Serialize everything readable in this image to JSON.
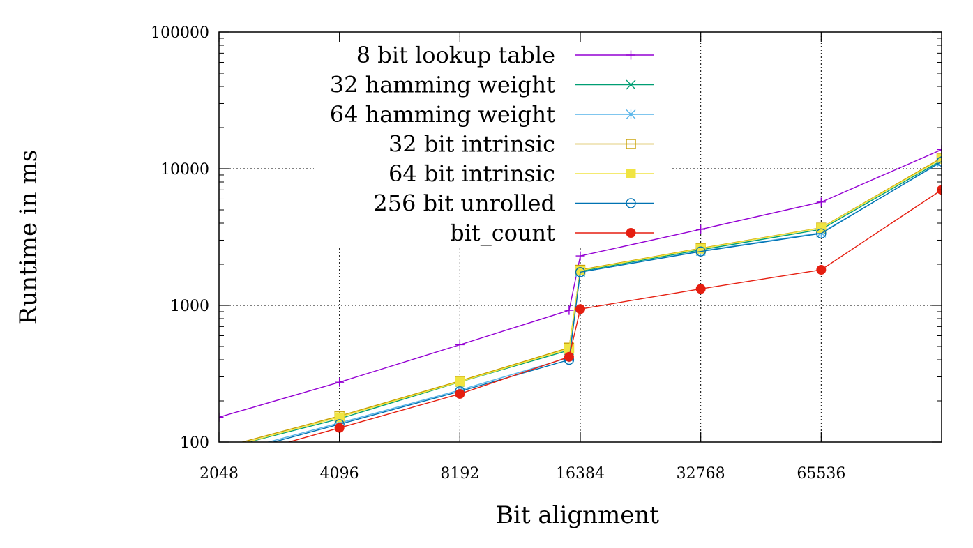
{
  "chart_data": {
    "type": "line",
    "xlabel": "Bit alignment",
    "ylabel": "Runtime in ms",
    "x_scale": "log2",
    "y_scale": "log10",
    "xlim": [
      2048,
      131072
    ],
    "ylim": [
      100,
      100000
    ],
    "x_ticks": [
      "2048",
      "4096",
      "8192",
      "16384",
      "32768",
      "65536"
    ],
    "y_ticks": [
      "100",
      "1000",
      "10000",
      "100000"
    ],
    "grid": true,
    "legend_position": "top-center",
    "series": [
      {
        "name": "8 bit lookup table",
        "color": "#9400d3",
        "marker": "plus",
        "x": [
          2048,
          4096,
          8192,
          15360,
          16384,
          32768,
          65536,
          131072
        ],
        "y": [
          152,
          274,
          515,
          920,
          2300,
          3600,
          5700,
          13800
        ]
      },
      {
        "name": "32 hamming weight",
        "color": "#009e73",
        "marker": "cross",
        "x": [
          2048,
          4096,
          8192,
          15360,
          16384,
          32768,
          65536,
          131072
        ],
        "y": [
          88,
          148,
          275,
          470,
          1780,
          2550,
          3600,
          11500
        ]
      },
      {
        "name": "64 hamming weight",
        "color": "#56b4e9",
        "marker": "star",
        "x": [
          2048,
          4096,
          8192,
          15360,
          16384,
          32768,
          65536,
          131072
        ],
        "y": [
          80,
          138,
          240,
          415,
          1750,
          2500,
          3400,
          11200
        ]
      },
      {
        "name": "32 bit intrinsic",
        "color": "#c8a000",
        "marker": "open-square",
        "x": [
          2048,
          4096,
          8192,
          15360,
          16384,
          32768,
          65536,
          131072
        ],
        "y": [
          90,
          155,
          280,
          490,
          1820,
          2620,
          3700,
          12000
        ]
      },
      {
        "name": "64 bit intrinsic",
        "color": "#f0e442",
        "marker": "filled-square",
        "x": [
          2048,
          4096,
          8192,
          15360,
          16384,
          32768,
          65536,
          131072
        ],
        "y": [
          88,
          152,
          276,
          480,
          1800,
          2600,
          3680,
          11800
        ]
      },
      {
        "name": "256 bit unrolled",
        "color": "#0072b2",
        "marker": "open-circle",
        "x": [
          2048,
          4096,
          8192,
          15360,
          16384,
          32768,
          65536,
          131072
        ],
        "y": [
          78,
          135,
          235,
          400,
          1750,
          2480,
          3360,
          11300
        ]
      },
      {
        "name": "bit_count",
        "color": "#e51e10",
        "marker": "filled-circle",
        "x": [
          2048,
          4096,
          8192,
          15360,
          16384,
          32768,
          65536,
          131072
        ],
        "y": [
          72,
          127,
          225,
          420,
          940,
          1320,
          1820,
          7000
        ]
      }
    ]
  }
}
